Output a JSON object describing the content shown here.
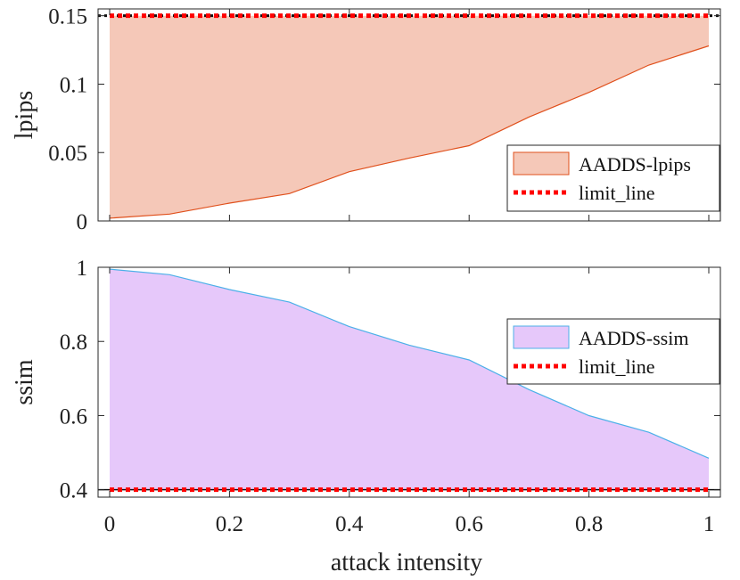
{
  "chart_data": [
    {
      "type": "area",
      "ylabel": "lpips",
      "xlabel": "",
      "xlim": [
        0,
        1
      ],
      "ylim": [
        0,
        0.155
      ],
      "yticks": [
        0,
        0.05,
        0.1,
        0.15
      ],
      "ytick_labels": [
        "0",
        "0.05",
        "0.1",
        "0.15"
      ],
      "show_xtick_labels": false,
      "legend_position": "bottom-right",
      "series": [
        {
          "name": "AADDS-lpips",
          "kind": "area",
          "fill": "#f5c8b8",
          "edge": "#e0501c",
          "x": [
            0,
            0.1,
            0.2,
            0.3,
            0.4,
            0.5,
            0.6,
            0.7,
            0.8,
            0.9,
            1.0
          ],
          "lower": [
            0.002,
            0.005,
            0.013,
            0.02,
            0.036,
            0.046,
            0.055,
            0.076,
            0.094,
            0.114,
            0.128
          ],
          "upper": [
            0.15,
            0.15,
            0.15,
            0.15,
            0.15,
            0.15,
            0.15,
            0.15,
            0.15,
            0.15,
            0.15
          ]
        },
        {
          "name": "limit_line",
          "kind": "line",
          "color": "#ff0000",
          "dashed": true,
          "value": 0.15
        }
      ]
    },
    {
      "type": "area",
      "ylabel": "ssim",
      "xlabel": "attack intensity",
      "xlim": [
        0,
        1
      ],
      "ylim": [
        0.38,
        1.0
      ],
      "yticks": [
        0.4,
        0.6,
        0.8,
        1.0
      ],
      "ytick_labels": [
        "0.4",
        "0.6",
        "0.8",
        "1"
      ],
      "xticks": [
        0,
        0.2,
        0.4,
        0.6,
        0.8,
        1.0
      ],
      "xtick_labels": [
        "0",
        "0.2",
        "0.4",
        "0.6",
        "0.8",
        "1"
      ],
      "show_xtick_labels": true,
      "legend_position": "top-right",
      "series": [
        {
          "name": "AADDS-ssim",
          "kind": "area",
          "fill": "#e6c8fa",
          "edge": "#4cb0e8",
          "x": [
            0,
            0.1,
            0.2,
            0.3,
            0.4,
            0.5,
            0.6,
            0.7,
            0.8,
            0.9,
            1.0
          ],
          "lower": [
            0.4,
            0.4,
            0.4,
            0.4,
            0.4,
            0.4,
            0.4,
            0.4,
            0.4,
            0.4,
            0.4
          ],
          "upper": [
            0.995,
            0.98,
            0.94,
            0.906,
            0.84,
            0.79,
            0.75,
            0.67,
            0.6,
            0.555,
            0.485
          ]
        },
        {
          "name": "limit_line",
          "kind": "line",
          "color": "#ff0000",
          "dashed": true,
          "value": 0.4
        }
      ]
    }
  ]
}
